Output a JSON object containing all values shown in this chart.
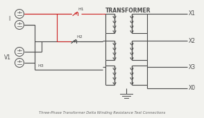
{
  "bg_color": "#f2f2ee",
  "line_color": "#4a4a4a",
  "red_color": "#cc2222",
  "transformer_label": "TRANSFORMER",
  "caption": "Three-Phase Transformer Delta Winding Resistance Test Connections",
  "terminals_right": [
    "X1",
    "X2",
    "X3",
    "X0"
  ],
  "label_I": "I",
  "label_V1": "V1",
  "figw": 2.94,
  "figh": 1.71,
  "dpi": 100
}
